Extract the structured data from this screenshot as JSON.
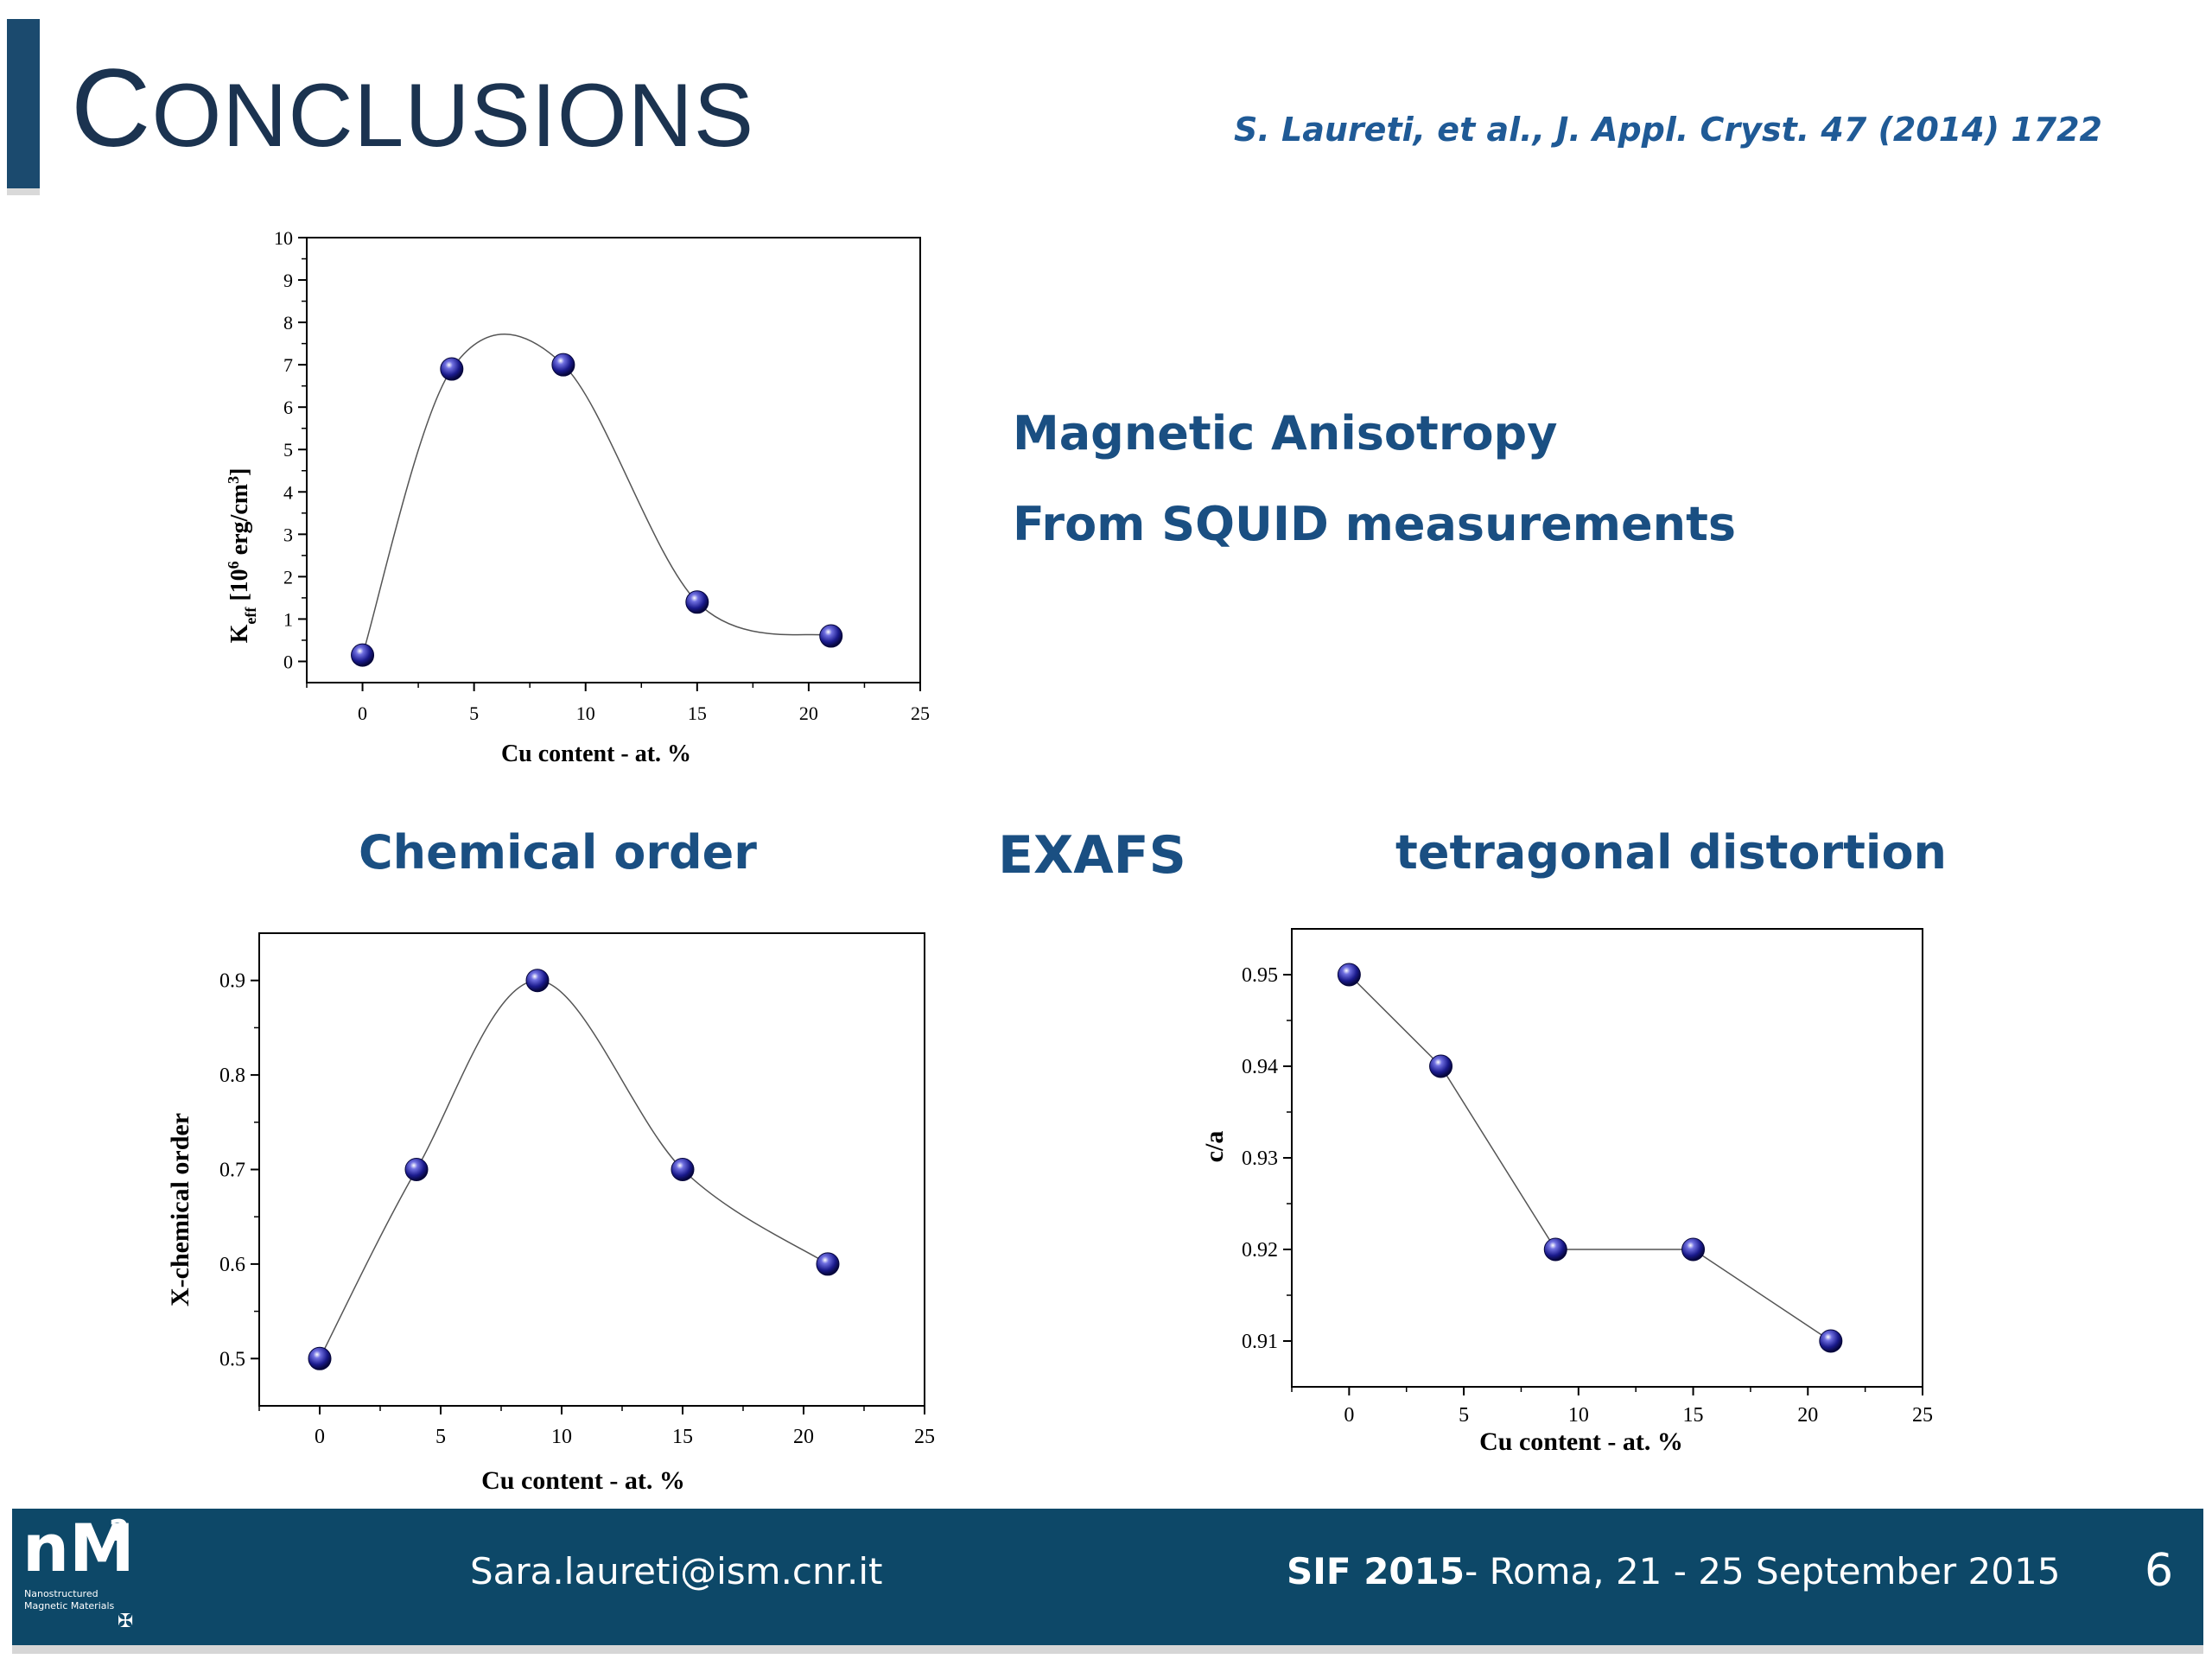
{
  "header": {
    "title_first_letter": "C",
    "title_rest": "ONCLUSIONS",
    "citation": "S. Laureti, et al., J. Appl. Cryst. 47 (2014) 1722"
  },
  "notes": {
    "magnetic_anisotropy": "Magnetic Anisotropy",
    "squid": "From SQUID measurements",
    "chemical_order": "Chemical order",
    "exafs": "EXAFS",
    "tetragonal": "tetragonal distortion"
  },
  "footer": {
    "logo_text": "nM",
    "logo_sup": "2",
    "logo_sub": "Nanostructured Magnetic Materials",
    "email": "Sara.laureti@ism.cnr.it",
    "event_bold": "SIF 2015",
    "event_rest": "- Roma, 21 - 25 September 2015",
    "page": "6"
  },
  "colors": {
    "brand": "#0d4868",
    "title": "#1b3350",
    "accent": "#1a4f82",
    "marker": "#1a1a8c"
  },
  "chart_data": [
    {
      "type": "scatter",
      "x": [
        0,
        4,
        9,
        15,
        21
      ],
      "y": [
        0.15,
        6.9,
        7.0,
        1.4,
        0.6
      ],
      "xlabel": "Cu content - at. %",
      "ylabel_main": "K",
      "ylabel_sub": "eff",
      "ylabel_mid": " [10",
      "ylabel_sup": "6",
      "ylabel_unit": " erg/cm",
      "ylabel_sup2": "3",
      "ylabel_end": "]",
      "xlim": [
        -2.5,
        25
      ],
      "ylim": [
        -0.5,
        10
      ],
      "xticks": [
        0,
        5,
        10,
        15,
        20,
        25
      ],
      "yticks": [
        0,
        1,
        2,
        3,
        4,
        5,
        6,
        7,
        8,
        9,
        10
      ],
      "fit_curve": "smooth"
    },
    {
      "type": "scatter",
      "x": [
        0,
        4,
        9,
        15,
        21
      ],
      "y": [
        0.5,
        0.7,
        0.9,
        0.7,
        0.6
      ],
      "xlabel": "Cu content - at. %",
      "ylabel": "X-chemical order",
      "xlim": [
        -2.5,
        25
      ],
      "ylim": [
        0.45,
        0.95
      ],
      "xticks": [
        0,
        5,
        10,
        15,
        20,
        25
      ],
      "yticks": [
        0.5,
        0.6,
        0.7,
        0.8,
        0.9
      ],
      "fit_curve": "smooth"
    },
    {
      "type": "line",
      "x": [
        0,
        4,
        9,
        15,
        21
      ],
      "y": [
        0.95,
        0.94,
        0.92,
        0.92,
        0.91
      ],
      "xlabel": "Cu content - at. %",
      "ylabel": "c/a",
      "xlim": [
        -2.5,
        25
      ],
      "ylim": [
        0.905,
        0.955
      ],
      "xticks": [
        0,
        5,
        10,
        15,
        20,
        25
      ],
      "yticks": [
        0.91,
        0.92,
        0.93,
        0.94,
        0.95
      ],
      "fit_curve": "straight"
    }
  ]
}
